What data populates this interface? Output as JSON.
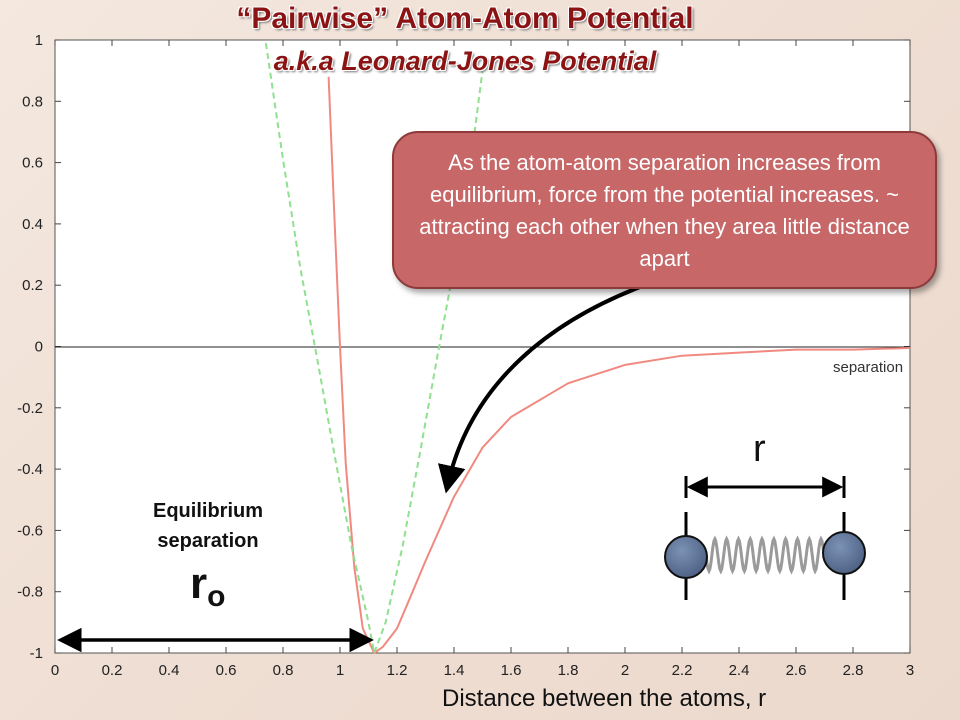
{
  "header": {
    "title": "“Pairwise” Atom-Atom Potential",
    "subtitle": "a.k.a Leonard-Jones Potential"
  },
  "callout": {
    "text": "As the atom-atom separation increases from equilibrium, force from the potential increases. ~ attracting each other when they area little distance apart"
  },
  "annotations": {
    "separation_small": "separation",
    "equilibrium": "Equilibrium separation",
    "r0_main": "r",
    "r0_sub": "o",
    "r_symbol": "r"
  },
  "colors": {
    "lj_curve": "#f08a80",
    "harmonic_curve": "#8fe08f",
    "atom": "#5e7497",
    "callout_fill": "#c76768",
    "title": "#8b1313"
  },
  "chart_data": {
    "type": "line",
    "title": "",
    "xlabel": "Distance between the atoms, r",
    "ylabel": "",
    "xlim": [
      0,
      3
    ],
    "ylim": [
      -1,
      1
    ],
    "x_ticks": [
      "0",
      "0.2",
      "0.4",
      "0.6",
      "0.8",
      "1",
      "1.2",
      "1.4",
      "1.6",
      "1.8",
      "2",
      "2.2",
      "2.4",
      "2.6",
      "2.8",
      "3"
    ],
    "y_ticks": [
      "1",
      "0.8",
      "0.6",
      "0.4",
      "0.2",
      "0",
      "-0.2",
      "-0.4",
      "-0.6",
      "-0.8",
      "-1"
    ],
    "grid": false,
    "series": [
      {
        "style": "solid",
        "color": "#f08a80",
        "x": [
          0.96,
          0.98,
          1.0,
          1.02,
          1.05,
          1.08,
          1.12,
          1.15,
          1.2,
          1.25,
          1.3,
          1.4,
          1.5,
          1.6,
          1.8,
          2.0,
          2.2,
          2.4,
          2.6,
          2.8,
          3.0
        ],
        "y": [
          0.88,
          0.43,
          0.0,
          -0.38,
          -0.72,
          -0.92,
          -1.0,
          -0.98,
          -0.92,
          -0.81,
          -0.7,
          -0.49,
          -0.33,
          -0.23,
          -0.12,
          -0.06,
          -0.03,
          -0.02,
          -0.01,
          -0.01,
          -0.005
        ]
      },
      {
        "style": "dashed",
        "color": "#8fe08f",
        "x": [
          0.74,
          0.8,
          0.86,
          0.92,
          0.98,
          1.04,
          1.1,
          1.12,
          1.16,
          1.22,
          1.28,
          1.34,
          1.4,
          1.46,
          1.5
        ],
        "y": [
          0.99,
          0.61,
          0.26,
          -0.04,
          -0.35,
          -0.65,
          -0.9,
          -1.0,
          -0.9,
          -0.65,
          -0.35,
          -0.04,
          0.26,
          0.61,
          0.9
        ]
      }
    ],
    "equilibrium_x": 1.12
  }
}
